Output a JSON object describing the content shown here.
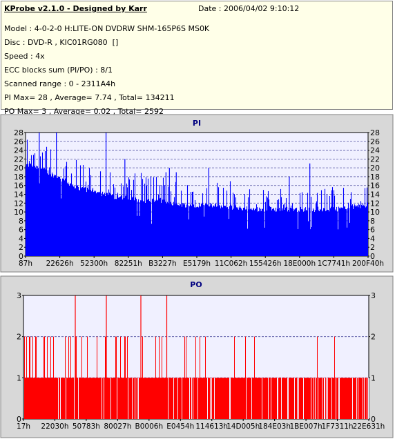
{
  "header": {
    "title": "KProbe v2.1.0 - Designed by Karr",
    "date": "Date : 2006/04/02 9:10:12",
    "model": "Model : 4-0-2-0 H:LITE-ON DVDRW SHM-165P6S MS0K",
    "disc": "Disc : DVD-R , KIC01RG080  []",
    "speed": "Speed : 4x",
    "ecc": "ECC blocks sum (PI/PO) : 8/1",
    "scanned": "Scanned range : 0 - 2311A4h",
    "pi_stats": "PI Max= 28 , Average= 7.74 , Total= 134211",
    "po_stats": "PO Max= 3 , Average= 0.02 , Total= 2592"
  },
  "colors": {
    "pi": "#0000ff",
    "po": "#ff0000",
    "plot_bg": "#f0f0ff",
    "grid": "#5050a0"
  },
  "chart_data": [
    {
      "type": "bar",
      "title": "PI",
      "ylim": [
        0,
        28
      ],
      "yticks": [
        0,
        2,
        4,
        6,
        8,
        10,
        12,
        14,
        16,
        18,
        20,
        22,
        24,
        26,
        28
      ],
      "xticks": [
        "87h",
        "22626h",
        "52300h",
        "82251h",
        "B3227h",
        "E5179h",
        "11C062h",
        "155426h",
        "18E000h",
        "1C7741h",
        "200F40h"
      ],
      "grid": true,
      "color": "#0000ff",
      "x_fraction_segments": [
        0,
        0.02,
        0.05,
        0.1,
        0.15,
        0.2,
        0.25,
        0.3,
        0.35,
        0.4,
        0.45,
        0.5,
        0.55,
        0.6,
        0.65,
        0.7,
        0.75,
        0.8,
        0.85,
        0.9,
        0.95,
        1.0
      ],
      "baseline": [
        20,
        20,
        19,
        17,
        15,
        14,
        13,
        12.5,
        12,
        12,
        11,
        11,
        11,
        10.5,
        10,
        10,
        10,
        10,
        10,
        10,
        10.5,
        11
      ],
      "peak": [
        27,
        28,
        27,
        24,
        22,
        21,
        20,
        19,
        19,
        18,
        17,
        17,
        17,
        17,
        16,
        16,
        16,
        16,
        15,
        16,
        16,
        17
      ],
      "spikes": [
        [
          0.04,
          28
        ],
        [
          0.09,
          28
        ],
        [
          0.235,
          28
        ],
        [
          0.29,
          22
        ],
        [
          0.41,
          19
        ],
        [
          0.42,
          20
        ],
        [
          0.44,
          19
        ],
        [
          0.535,
          20
        ],
        [
          0.77,
          18
        ],
        [
          0.83,
          21
        ]
      ]
    },
    {
      "type": "bar",
      "title": "PO",
      "ylim": [
        0,
        3
      ],
      "yticks": [
        0,
        1,
        2,
        3
      ],
      "xticks": [
        "17h",
        "22030h",
        "50783h",
        "80027h",
        "B0006h",
        "E0454h",
        "114613h",
        "14D005h",
        "184E03h",
        "1BE007h",
        "1F7311h",
        "22E631h"
      ],
      "grid": true,
      "color": "#ff0000",
      "threes": [
        0.15,
        0.24,
        0.34,
        0.415
      ],
      "twos_density": [
        0.45,
        0.3,
        0.25,
        0.2,
        0.15,
        0.12,
        0.1,
        0.08
      ]
    }
  ]
}
